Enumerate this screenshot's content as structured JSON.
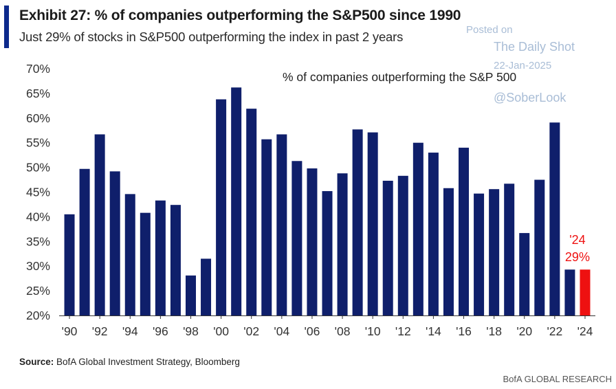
{
  "header": {
    "title": "Exhibit 27: % of companies outperforming the S&P500 since 1990",
    "subtitle": "Just 29% of stocks in S&P500 outperforming the index in past 2 years"
  },
  "watermark": {
    "posted": "Posted on",
    "outlet": "The Daily Shot",
    "date": "22-Jan-2025",
    "handle": "@SoberLook"
  },
  "footer": {
    "source_label": "Source:",
    "source_text": " BofA Global Investment Strategy, Bloomberg",
    "brand": "BofA GLOBAL RESEARCH"
  },
  "colors": {
    "bar": "#0f1f6b",
    "highlight": "#ee1111",
    "accent": "#0d2a8c",
    "watermark": "#a9bdd6"
  },
  "chart_data": {
    "type": "bar",
    "series_label": "% of companies outperforming the S&P 500",
    "x": [
      1990,
      1991,
      1992,
      1993,
      1994,
      1995,
      1996,
      1997,
      1998,
      1999,
      2000,
      2001,
      2002,
      2003,
      2004,
      2005,
      2006,
      2007,
      2008,
      2009,
      2010,
      2011,
      2012,
      2013,
      2014,
      2015,
      2016,
      2017,
      2018,
      2019,
      2020,
      2021,
      2022,
      2023,
      2024
    ],
    "values": [
      40.5,
      49.7,
      56.7,
      49.2,
      44.6,
      40.8,
      43.3,
      42.4,
      28.1,
      31.5,
      63.8,
      66.2,
      61.9,
      55.7,
      56.7,
      51.3,
      49.8,
      45.2,
      48.8,
      57.7,
      57.1,
      47.3,
      48.3,
      55.0,
      53.0,
      45.8,
      54.0,
      44.7,
      45.6,
      46.7,
      36.7,
      47.5,
      59.1,
      29.3,
      29.3
    ],
    "highlight_index": 34,
    "ylim": [
      20,
      70
    ],
    "yticks": [
      20,
      25,
      30,
      35,
      40,
      45,
      50,
      55,
      60,
      65,
      70
    ],
    "ytick_labels": [
      "20%",
      "25%",
      "30%",
      "35%",
      "40%",
      "45%",
      "50%",
      "55%",
      "60%",
      "65%",
      "70%"
    ],
    "xtick_labels": [
      "'90",
      "'92",
      "'94",
      "'96",
      "'98",
      "'00",
      "'02",
      "'04",
      "'06",
      "'08",
      "'10",
      "'12",
      "'14",
      "'16",
      "'18",
      "'20",
      "'22",
      "'24"
    ],
    "annotation": {
      "line1": "'24",
      "line2": "29%"
    },
    "grid": false,
    "legend": "none"
  }
}
